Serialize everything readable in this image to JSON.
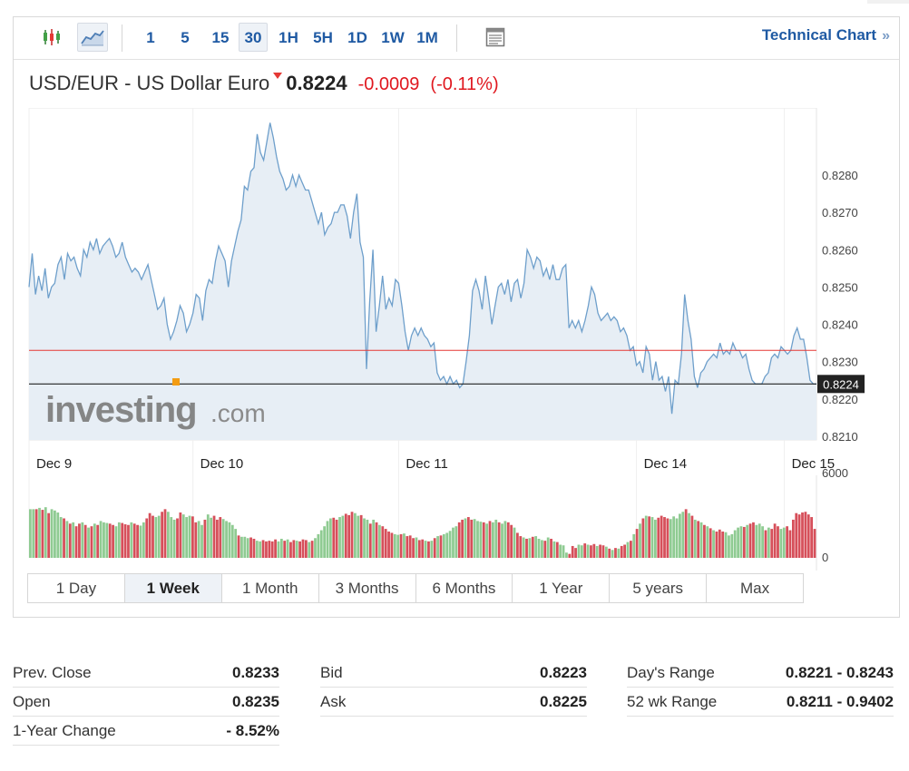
{
  "toolbar": {
    "intervals": [
      "1",
      "5",
      "15",
      "30",
      "1H",
      "5H",
      "1D",
      "1W",
      "1M"
    ],
    "active_interval": "30",
    "technical_chart_label": "Technical Chart",
    "chevron": "»",
    "icons": [
      "candlestick-icon",
      "line-chart-icon",
      "table-view-icon"
    ]
  },
  "title": {
    "name": "USD/EUR - US Dollar Euro",
    "last": "0.8224",
    "change": "-0.0009",
    "change_pct": "(-0.11%)",
    "direction_icon": "down-arrow-icon"
  },
  "watermark": {
    "main": "investing",
    "suffix": ".com"
  },
  "chart_data": {
    "type": "area",
    "x_labels": [
      "Dec 9",
      "Dec 10",
      "Dec 11",
      "Dec 14",
      "Dec 15"
    ],
    "price_ticks": [
      "0.8280",
      "0.8270",
      "0.8260",
      "0.8250",
      "0.8240",
      "0.8230",
      "0.8220",
      "0.8210"
    ],
    "ylim": [
      0.8209,
      0.8298
    ],
    "prev_close": 0.8233,
    "last": 0.8224,
    "last_label": "0.8224",
    "line_color": "#6e9fcb",
    "fill_color": "#e7eef5",
    "prev_close_color": "#e53935",
    "series": [
      {
        "values": [
          0.825,
          0.8259,
          0.8248,
          0.8253,
          0.8249,
          0.8255,
          0.8247,
          0.825,
          0.8251,
          0.8256,
          0.8258,
          0.8252,
          0.8259,
          0.8257,
          0.8258,
          0.8255,
          0.8253,
          0.826,
          0.8258,
          0.8262,
          0.826,
          0.8263,
          0.8259,
          0.8261,
          0.8262,
          0.8263,
          0.8261,
          0.8258,
          0.8259,
          0.8262,
          0.8258,
          0.8256,
          0.8254,
          0.8255,
          0.8254,
          0.8252,
          0.8254,
          0.8256,
          0.8252,
          0.8248,
          0.8244,
          0.8245,
          0.8247,
          0.824,
          0.8236,
          0.8238,
          0.8241,
          0.8245,
          0.8243,
          0.8238,
          0.824,
          0.8243,
          0.8248,
          0.8247,
          0.8241,
          0.8249,
          0.8252,
          0.8251,
          0.8257,
          0.8261,
          0.8259,
          0.8257,
          0.825,
          0.8257,
          0.8261,
          0.8265,
          0.8268,
          0.8277,
          0.8276,
          0.8281,
          0.8282,
          0.8291,
          0.8286,
          0.8284,
          0.8289,
          0.8294,
          0.829,
          0.8285,
          0.8281,
          0.8279,
          0.8276,
          0.8277,
          0.828,
          0.8277,
          0.828,
          0.8278,
          0.8276,
          0.8276,
          0.8273,
          0.827,
          0.8267,
          0.827,
          0.8264,
          0.8266,
          0.8267,
          0.827,
          0.827,
          0.8272,
          0.8272,
          0.8269,
          0.8263,
          0.827,
          0.8275,
          0.8262,
          0.8258,
          0.8228,
          0.8246,
          0.826,
          0.8238,
          0.8245,
          0.8253,
          0.8244,
          0.8247,
          0.8245,
          0.8252,
          0.8251,
          0.8245,
          0.8238,
          0.8233,
          0.8237,
          0.8239,
          0.8237,
          0.8239,
          0.8237,
          0.8236,
          0.8234,
          0.8235,
          0.8227,
          0.8225,
          0.8226,
          0.8224,
          0.8226,
          0.8224,
          0.8225,
          0.8223,
          0.8224,
          0.823,
          0.8237,
          0.8249,
          0.8252,
          0.8249,
          0.8244,
          0.8253,
          0.8247,
          0.824,
          0.8245,
          0.825,
          0.8251,
          0.8248,
          0.8252,
          0.8246,
          0.8251,
          0.8252,
          0.8247,
          0.8251,
          0.826,
          0.8258,
          0.8255,
          0.8258,
          0.8257,
          0.8253,
          0.8255,
          0.8252,
          0.8256,
          0.8252,
          0.8252,
          0.8255,
          0.8256,
          0.8239,
          0.8241,
          0.8239,
          0.8241,
          0.8238,
          0.8241,
          0.8245,
          0.825,
          0.8248,
          0.8243,
          0.8241,
          0.8242,
          0.8243,
          0.8241,
          0.8242,
          0.8241,
          0.8238,
          0.8239,
          0.8237,
          0.8233,
          0.8234,
          0.8229,
          0.823,
          0.8227,
          0.8234,
          0.8232,
          0.8225,
          0.823,
          0.8225,
          0.8226,
          0.8222,
          0.8226,
          0.8216,
          0.8225,
          0.8224,
          0.8232,
          0.8248,
          0.8241,
          0.8236,
          0.8226,
          0.8223,
          0.8227,
          0.8228,
          0.823,
          0.8231,
          0.8232,
          0.8231,
          0.8235,
          0.8232,
          0.8233,
          0.8232,
          0.8235,
          0.8233,
          0.8233,
          0.8231,
          0.8232,
          0.8228,
          0.8225,
          0.8224,
          0.8224,
          0.8224,
          0.8226,
          0.8227,
          0.8231,
          0.8232,
          0.8231,
          0.8234,
          0.8233,
          0.8232,
          0.8233,
          0.8237,
          0.8239,
          0.8236,
          0.8236,
          0.8231,
          0.8225,
          0.8224,
          0.8224
        ]
      }
    ],
    "volume": {
      "ticks": [
        "6000",
        "0"
      ],
      "up_color": "#8fcb92",
      "down_color": "#d64f5a",
      "values": [
        3700,
        3700,
        3700,
        3800,
        3650,
        3850,
        3400,
        3700,
        3600,
        3450,
        3100,
        3000,
        2800,
        2600,
        2700,
        2400,
        2600,
        2700,
        2500,
        2300,
        2400,
        2600,
        2500,
        2800,
        2700,
        2650,
        2600,
        2500,
        2400,
        2700,
        2650,
        2550,
        2500,
        2700,
        2600,
        2500,
        2450,
        2700,
        3000,
        3400,
        3200,
        3100,
        3200,
        3500,
        3700,
        3500,
        3100,
        2900,
        3000,
        3450,
        3300,
        3100,
        3200,
        3150,
        2700,
        2800,
        2500,
        2900,
        3300,
        3050,
        3200,
        2900,
        3100,
        2950,
        2800,
        2700,
        2500,
        2200,
        1700,
        1600,
        1600,
        1500,
        1550,
        1450,
        1300,
        1250,
        1350,
        1250,
        1300,
        1250,
        1400,
        1250,
        1450,
        1300,
        1400,
        1200,
        1350,
        1300,
        1250,
        1400,
        1350,
        1200,
        1300,
        1500,
        1800,
        2100,
        2400,
        2800,
        3000,
        3050,
        2900,
        3100,
        3200,
        3350,
        3250,
        3500,
        3400,
        3200,
        3250,
        3000,
        2900,
        2600,
        2900,
        2700,
        2500,
        2400,
        2200,
        2000,
        1900,
        1800,
        1750,
        1800,
        1850,
        1650,
        1700,
        1500,
        1550,
        1350,
        1400,
        1300,
        1250,
        1300,
        1500,
        1650,
        1700,
        1800,
        1900,
        2050,
        2300,
        2400,
        2700,
        2900,
        3000,
        3100,
        2900,
        2950,
        2800,
        2750,
        2700,
        2600,
        2800,
        2700,
        2900,
        2700,
        2600,
        2800,
        2700,
        2500,
        2300,
        1900,
        1650,
        1550,
        1450,
        1500,
        1600,
        1650,
        1450,
        1350,
        1300,
        1550,
        1450,
        1250,
        1200,
        1000,
        950,
        400,
        300,
        900,
        750,
        1000,
        950,
        1100,
        1000,
        950,
        1050,
        900,
        1000,
        950,
        850,
        700,
        600,
        750,
        700,
        900,
        1000,
        1200,
        1300,
        1800,
        2200,
        2600,
        3000,
        3200,
        3150,
        3100,
        2900,
        3050,
        3200,
        3100,
        3000,
        2950,
        3150,
        3000,
        3350,
        3500,
        3700,
        3400,
        3200,
        2900,
        2800,
        2700,
        2500,
        2400,
        2250,
        2100,
        2000,
        2150,
        2000,
        1950,
        1700,
        1800,
        2100,
        2300,
        2400,
        2350,
        2500,
        2600,
        2700,
        2500,
        2600,
        2400,
        2100,
        2300,
        2200,
        2600,
        2400,
        2200,
        2300,
        2400,
        2100,
        2900,
        3400,
        3300,
        3450,
        3500,
        3300,
        3100,
        2200
      ]
    }
  },
  "ranges": {
    "items": [
      "1 Day",
      "1 Week",
      "1 Month",
      "3 Months",
      "6 Months",
      "1 Year",
      "5 years",
      "Max"
    ],
    "active": "1 Week"
  },
  "stats": {
    "columns": [
      [
        {
          "label": "Prev. Close",
          "value": "0.8233"
        },
        {
          "label": "Open",
          "value": "0.8235"
        },
        {
          "label": "1-Year Change",
          "value": "- 8.52%"
        }
      ],
      [
        {
          "label": "Bid",
          "value": "0.8223"
        },
        {
          "label": "Ask",
          "value": "0.8225"
        }
      ],
      [
        {
          "label": "Day's Range",
          "value": "0.8221 - 0.8243"
        },
        {
          "label": "52 wk Range",
          "value": "0.8211 - 0.9402"
        }
      ]
    ]
  }
}
